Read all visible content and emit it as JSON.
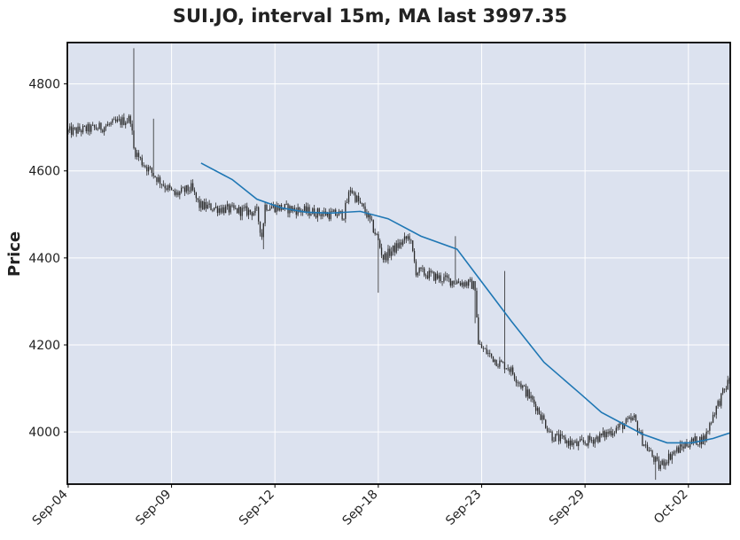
{
  "chart_data": {
    "type": "candlestick",
    "title": "SUI.JO, interval 15m, MA last 3997.35",
    "xlabel": "",
    "ylabel": "Price",
    "ylim": [
      3880,
      4895
    ],
    "yticks": [
      4000,
      4200,
      4400,
      4600,
      4800
    ],
    "xtick_labels": [
      "Sep-04",
      "Sep-09",
      "Sep-12",
      "Sep-18",
      "Sep-23",
      "Sep-29",
      "Oct-02"
    ],
    "xtick_positions": [
      0,
      63,
      126,
      189,
      252,
      315,
      378
    ],
    "n_points": 404,
    "colors": {
      "background": "#dce2ef",
      "grid": "#ffffff",
      "candle": "#2a2a2a",
      "ma": "#1f77b4"
    },
    "price_path": [
      [
        0,
        4690
      ],
      [
        20,
        4700
      ],
      [
        38,
        4720
      ],
      [
        40,
        4650
      ],
      [
        45,
        4620
      ],
      [
        55,
        4580
      ],
      [
        65,
        4545
      ],
      [
        75,
        4560
      ],
      [
        80,
        4520
      ],
      [
        100,
        4510
      ],
      [
        115,
        4505
      ],
      [
        118,
        4450
      ],
      [
        120,
        4520
      ],
      [
        160,
        4500
      ],
      [
        168,
        4500
      ],
      [
        172,
        4560
      ],
      [
        175,
        4540
      ],
      [
        182,
        4500
      ],
      [
        188,
        4450
      ],
      [
        192,
        4400
      ],
      [
        205,
        4440
      ],
      [
        208,
        4450
      ],
      [
        212,
        4370
      ],
      [
        230,
        4350
      ],
      [
        245,
        4340
      ],
      [
        248,
        4335
      ],
      [
        250,
        4200
      ],
      [
        262,
        4160
      ],
      [
        268,
        4150
      ],
      [
        272,
        4130
      ],
      [
        285,
        4060
      ],
      [
        295,
        3990
      ],
      [
        310,
        3970
      ],
      [
        325,
        3990
      ],
      [
        330,
        4000
      ],
      [
        345,
        4030
      ],
      [
        350,
        3980
      ],
      [
        360,
        3920
      ],
      [
        368,
        3950
      ],
      [
        378,
        3975
      ],
      [
        388,
        3985
      ],
      [
        393,
        4040
      ],
      [
        403,
        4120
      ]
    ],
    "spikes": [
      {
        "i": 40,
        "high": 4882
      },
      {
        "i": 52,
        "high": 4720
      },
      {
        "i": 119,
        "low": 4420
      },
      {
        "i": 189,
        "low": 4320
      },
      {
        "i": 236,
        "high": 4450
      },
      {
        "i": 248,
        "high": 4250
      },
      {
        "i": 266,
        "high": 4370
      },
      {
        "i": 358,
        "low": 3890
      }
    ],
    "ma_series": [
      [
        81,
        4618
      ],
      [
        100,
        4580
      ],
      [
        115,
        4535
      ],
      [
        130,
        4515
      ],
      [
        145,
        4505
      ],
      [
        160,
        4503
      ],
      [
        178,
        4507
      ],
      [
        195,
        4490
      ],
      [
        215,
        4450
      ],
      [
        237,
        4420
      ],
      [
        252,
        4345
      ],
      [
        270,
        4255
      ],
      [
        290,
        4160
      ],
      [
        313,
        4085
      ],
      [
        325,
        4045
      ],
      [
        350,
        3995
      ],
      [
        365,
        3975
      ],
      [
        380,
        3975
      ],
      [
        393,
        3985
      ],
      [
        403,
        3997.35
      ]
    ]
  }
}
